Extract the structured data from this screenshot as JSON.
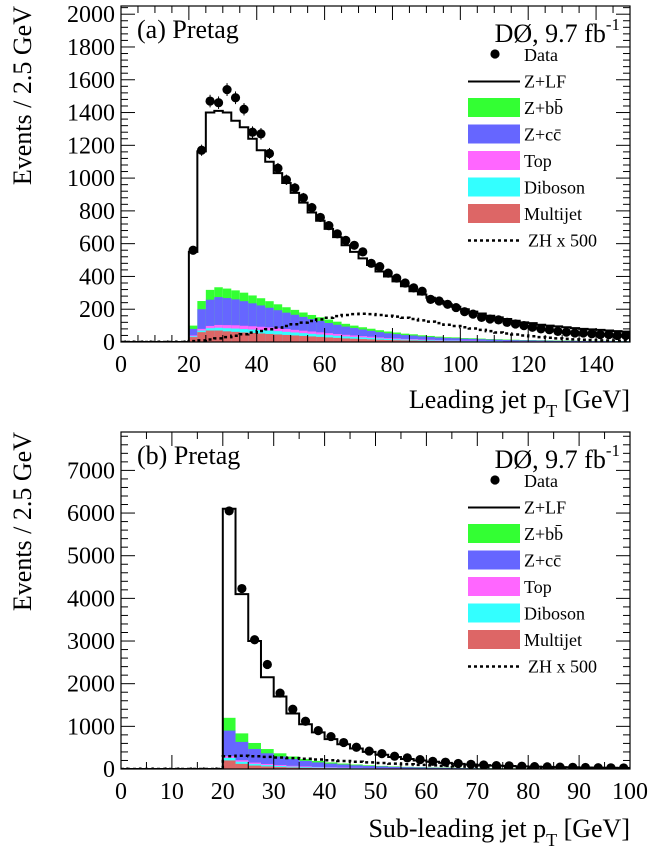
{
  "chart_data": [
    {
      "type": "histogram",
      "panel_label": "(a) Pretag",
      "experiment_label": "DØ, 9.7 fb",
      "lumi_sup": "-1",
      "xlabel": "Leading jet p",
      "xlabel_sub": "T",
      "xlabel_unit": " [GeV]",
      "ylabel": "Events / 2.5 GeV",
      "xlim": [
        0,
        150
      ],
      "ylim": [
        0,
        2050
      ],
      "xticks": [
        0,
        20,
        40,
        60,
        80,
        100,
        120,
        140
      ],
      "yticks": [
        0,
        200,
        400,
        600,
        800,
        1000,
        1200,
        1400,
        1600,
        1800,
        2000
      ],
      "bin_width": 2.5,
      "x": [
        20,
        22.5,
        25,
        27.5,
        30,
        32.5,
        35,
        37.5,
        40,
        42.5,
        45,
        47.5,
        50,
        52.5,
        55,
        57.5,
        60,
        62.5,
        65,
        67.5,
        70,
        72.5,
        75,
        77.5,
        80,
        82.5,
        85,
        87.5,
        90,
        92.5,
        95,
        97.5,
        100,
        102.5,
        105,
        107.5,
        110,
        112.5,
        115,
        117.5,
        120,
        122.5,
        125,
        127.5,
        130,
        132.5,
        135,
        137.5,
        140,
        142.5,
        145,
        147.5
      ],
      "legend": {
        "placement": "top-right",
        "entries": [
          {
            "label": "Data",
            "kind": "marker"
          },
          {
            "label": "Z+LF",
            "kind": "line"
          },
          {
            "label": "Z+bb̄",
            "kind": "fill",
            "color": "#33ff33"
          },
          {
            "label": "Z+cc̄",
            "kind": "fill",
            "color": "#6666ff"
          },
          {
            "label": "Top",
            "kind": "fill",
            "color": "#ff66ff"
          },
          {
            "label": "Diboson",
            "kind": "fill",
            "color": "#33ffff"
          },
          {
            "label": "Multijet",
            "kind": "fill",
            "color": "#dd6666"
          },
          {
            "label": "ZH x 500",
            "kind": "dotted"
          }
        ]
      },
      "series": [
        {
          "name": "Multijet",
          "color": "#dd6666",
          "values": [
            30,
            60,
            70,
            70,
            65,
            62,
            58,
            55,
            52,
            49,
            46,
            43,
            40,
            37,
            34,
            31,
            28,
            25,
            22,
            20,
            18,
            16,
            14,
            12,
            11,
            10,
            9,
            8,
            7,
            6,
            5,
            5,
            4,
            4,
            3,
            3,
            3,
            2,
            2,
            2,
            2,
            2,
            1,
            1,
            1,
            1,
            1,
            1,
            1,
            1,
            1,
            1
          ]
        },
        {
          "name": "Diboson",
          "color": "#33ffff",
          "values": [
            5,
            10,
            14,
            17,
            19,
            20,
            21,
            21,
            21,
            21,
            20,
            19,
            18,
            17,
            16,
            15,
            14,
            13,
            12,
            11,
            10,
            9,
            8,
            7,
            6,
            5,
            5,
            4,
            4,
            3,
            3,
            3,
            2,
            2,
            2,
            2,
            2,
            1,
            1,
            1,
            1,
            1,
            1,
            1,
            1,
            1,
            1,
            1,
            1,
            1,
            1,
            1
          ]
        },
        {
          "name": "Top",
          "color": "#ff66ff",
          "values": [
            5,
            10,
            14,
            17,
            19,
            20,
            20,
            20,
            20,
            19,
            18,
            17,
            16,
            15,
            14,
            13,
            12,
            11,
            10,
            9,
            8,
            7,
            6,
            5,
            5,
            4,
            4,
            3,
            3,
            3,
            2,
            2,
            2,
            2,
            2,
            1,
            1,
            1,
            1,
            1,
            1,
            1,
            1,
            1,
            1,
            1,
            1,
            1,
            1,
            1,
            1,
            1
          ]
        },
        {
          "name": "Z+cc̄",
          "color": "#6666ff",
          "values": [
            40,
            120,
            160,
            170,
            165,
            158,
            150,
            140,
            130,
            120,
            110,
            100,
            92,
            84,
            76,
            69,
            62,
            56,
            50,
            45,
            40,
            36,
            32,
            29,
            26,
            23,
            21,
            19,
            17,
            15,
            14,
            13,
            12,
            11,
            10,
            9,
            8,
            8,
            7,
            6,
            6,
            5,
            5,
            4,
            4,
            4,
            3,
            3,
            3,
            3,
            2,
            2
          ]
        },
        {
          "name": "Z+bb̄",
          "color": "#33ff33",
          "values": [
            20,
            50,
            60,
            60,
            58,
            55,
            52,
            48,
            44,
            40,
            36,
            33,
            30,
            27,
            25,
            23,
            21,
            19,
            17,
            15,
            14,
            13,
            12,
            11,
            10,
            9,
            8,
            7,
            6,
            6,
            5,
            5,
            4,
            4,
            4,
            3,
            3,
            3,
            3,
            2,
            2,
            2,
            2,
            2,
            2,
            1,
            1,
            1,
            1,
            1,
            1,
            1
          ]
        },
        {
          "name": "Z+LF",
          "color": "#ffffff",
          "values": [
            450,
            913,
            1082,
            1076,
            1074,
            1035,
            1009,
            956,
            903,
            851,
            800,
            758,
            714,
            670,
            625,
            589,
            553,
            516,
            479,
            450,
            420,
            389,
            358,
            336,
            312,
            289,
            263,
            249,
            233,
            217,
            201,
            187,
            176,
            162,
            153,
            142,
            133,
            125,
            116,
            108,
            103,
            94,
            90,
            86,
            81,
            77,
            73,
            70,
            67,
            63,
            60,
            57
          ]
        }
      ],
      "total_mc": [
        550,
        1163,
        1400,
        1410,
        1400,
        1350,
        1310,
        1240,
        1170,
        1100,
        1030,
        970,
        910,
        850,
        790,
        740,
        690,
        640,
        590,
        550,
        510,
        470,
        430,
        400,
        370,
        340,
        310,
        290,
        270,
        250,
        230,
        215,
        200,
        185,
        174,
        160,
        150,
        140,
        130,
        120,
        115,
        105,
        100,
        95,
        90,
        85,
        80,
        77,
        74,
        70,
        66,
        63
      ],
      "data": [
        560,
        1170,
        1470,
        1460,
        1540,
        1490,
        1420,
        1280,
        1270,
        1150,
        1060,
        990,
        940,
        880,
        820,
        760,
        710,
        660,
        620,
        590,
        550,
        480,
        460,
        420,
        390,
        360,
        330,
        310,
        260,
        250,
        230,
        210,
        185,
        170,
        150,
        140,
        135,
        120,
        110,
        100,
        90,
        80,
        75,
        65,
        60,
        55,
        55,
        50,
        45,
        45,
        40,
        40
      ],
      "zh_x500": [
        5,
        10,
        15,
        22,
        30,
        38,
        47,
        57,
        67,
        78,
        88,
        98,
        108,
        118,
        128,
        138,
        148,
        158,
        165,
        170,
        172,
        170,
        165,
        160,
        155,
        148,
        140,
        132,
        124,
        115,
        105,
        98,
        90,
        82,
        74,
        66,
        58,
        52,
        46,
        40,
        35,
        30,
        26,
        22,
        19,
        16,
        14,
        12,
        10,
        9,
        8,
        7
      ]
    },
    {
      "type": "histogram",
      "panel_label": "(b) Pretag",
      "experiment_label": "DØ, 9.7 fb",
      "lumi_sup": "-1",
      "xlabel": "Sub-leading jet p",
      "xlabel_sub": "T",
      "xlabel_unit": " [GeV]",
      "ylabel": "Events / 2.5 GeV",
      "xlim": [
        0,
        100
      ],
      "ylim": [
        0,
        7900
      ],
      "xticks": [
        0,
        10,
        20,
        30,
        40,
        50,
        60,
        70,
        80,
        90,
        100
      ],
      "yticks": [
        0,
        1000,
        2000,
        3000,
        4000,
        5000,
        6000,
        7000
      ],
      "bin_width": 2.5,
      "x": [
        20,
        22.5,
        25,
        27.5,
        30,
        32.5,
        35,
        37.5,
        40,
        42.5,
        45,
        47.5,
        50,
        52.5,
        55,
        57.5,
        60,
        62.5,
        65,
        67.5,
        70,
        72.5,
        75,
        77.5,
        80,
        82.5,
        85,
        87.5,
        90,
        92.5,
        95,
        97.5
      ],
      "legend": {
        "placement": "top-right",
        "entries": [
          {
            "label": "Data",
            "kind": "marker"
          },
          {
            "label": "Z+LF",
            "kind": "line"
          },
          {
            "label": "Z+bb̄",
            "kind": "fill",
            "color": "#33ff33"
          },
          {
            "label": "Z+cc̄",
            "kind": "fill",
            "color": "#6666ff"
          },
          {
            "label": "Top",
            "kind": "fill",
            "color": "#ff66ff"
          },
          {
            "label": "Diboson",
            "kind": "fill",
            "color": "#33ffff"
          },
          {
            "label": "Multijet",
            "kind": "fill",
            "color": "#dd6666"
          },
          {
            "label": "ZH x 500",
            "kind": "dotted"
          }
        ]
      },
      "series": [
        {
          "name": "Multijet",
          "color": "#dd6666",
          "values": [
            200,
            120,
            80,
            60,
            45,
            35,
            28,
            22,
            18,
            15,
            12,
            10,
            8,
            7,
            6,
            5,
            4,
            4,
            3,
            3,
            2,
            2,
            2,
            2,
            1,
            1,
            1,
            1,
            1,
            1,
            1,
            1
          ]
        },
        {
          "name": "Diboson",
          "color": "#33ffff",
          "values": [
            60,
            50,
            40,
            32,
            26,
            21,
            17,
            14,
            12,
            10,
            8,
            7,
            6,
            5,
            4,
            4,
            3,
            3,
            2,
            2,
            2,
            2,
            1,
            1,
            1,
            1,
            1,
            1,
            1,
            1,
            1,
            1
          ]
        },
        {
          "name": "Top",
          "color": "#ff66ff",
          "values": [
            40,
            35,
            30,
            26,
            22,
            19,
            16,
            13,
            11,
            9,
            8,
            7,
            6,
            5,
            4,
            4,
            3,
            3,
            2,
            2,
            2,
            2,
            1,
            1,
            1,
            1,
            1,
            1,
            1,
            1,
            1,
            1
          ]
        },
        {
          "name": "Z+cc̄",
          "color": "#6666ff",
          "values": [
            600,
            430,
            320,
            250,
            200,
            160,
            130,
            105,
            85,
            70,
            58,
            48,
            40,
            33,
            28,
            24,
            20,
            17,
            15,
            13,
            11,
            10,
            9,
            8,
            7,
            6,
            5,
            5,
            4,
            4,
            3,
            3
          ]
        },
        {
          "name": "Z+bb̄",
          "color": "#33ff33",
          "values": [
            300,
            200,
            140,
            100,
            75,
            58,
            45,
            36,
            29,
            24,
            20,
            16,
            13,
            11,
            9,
            8,
            7,
            6,
            5,
            4,
            4,
            3,
            3,
            2,
            2,
            2,
            2,
            1,
            1,
            1,
            1,
            1
          ]
        },
        {
          "name": "Z+LF",
          "color": "#ffffff",
          "values": [
            4900,
            3265,
            2390,
            1682,
            1332,
            1007,
            814,
            670,
            545,
            452,
            374,
            312,
            262,
            219,
            184,
            155,
            133,
            112,
            93,
            81,
            69,
            61,
            54,
            47,
            43,
            39,
            35,
            31,
            27,
            24,
            21,
            19
          ]
        }
      ],
      "total_mc": [
        6100,
        4100,
        3000,
        2150,
        1700,
        1300,
        1050,
        860,
        700,
        580,
        480,
        400,
        335,
        280,
        235,
        200,
        170,
        145,
        120,
        105,
        90,
        80,
        70,
        62,
        55,
        50,
        45,
        40,
        35,
        31,
        28,
        26
      ],
      "data": [
        6050,
        4230,
        3030,
        2450,
        1780,
        1400,
        1120,
        900,
        760,
        620,
        510,
        420,
        360,
        300,
        260,
        220,
        180,
        160,
        130,
        110,
        95,
        80,
        75,
        65,
        55,
        50,
        45,
        40,
        35,
        30,
        28,
        25
      ],
      "zh_x500": [
        300,
        310,
        300,
        285,
        270,
        255,
        240,
        222,
        205,
        188,
        170,
        155,
        140,
        125,
        110,
        97,
        85,
        74,
        64,
        55,
        47,
        40,
        34,
        28,
        24,
        20,
        17,
        14,
        11,
        9,
        7,
        6
      ]
    }
  ]
}
